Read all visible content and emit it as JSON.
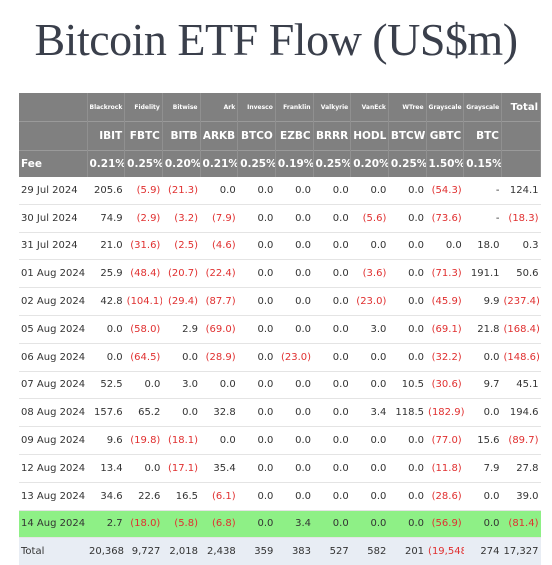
{
  "title": "Bitcoin ETF Flow (US$m)",
  "table": {
    "issuers": [
      "Blackrock",
      "Fidelity",
      "Bitwise",
      "Ark",
      "Invesco",
      "Franklin",
      "Valkyrie",
      "VanEck",
      "WTree",
      "Grayscale",
      "Grayscale"
    ],
    "total_label": "Total",
    "tickers": [
      "IBIT",
      "FBTC",
      "BITB",
      "ARKB",
      "BTCO",
      "EZBC",
      "BRRR",
      "HODL",
      "BTCW",
      "GBTC",
      "BTC"
    ],
    "fee_label": "Fee",
    "fees": [
      "0.21%",
      "0.25%",
      "0.20%",
      "0.21%",
      "0.25%",
      "0.19%",
      "0.25%",
      "0.20%",
      "0.25%",
      "1.50%",
      "0.15%"
    ],
    "rows": [
      {
        "date": "29 Jul 2024",
        "values": [
          "205.6",
          "(5.9)",
          "(21.3)",
          "0.0",
          "0.0",
          "0.0",
          "0.0",
          "0.0",
          "0.0",
          "(54.3)",
          "-"
        ],
        "total": "124.1"
      },
      {
        "date": "30 Jul 2024",
        "values": [
          "74.9",
          "(2.9)",
          "(3.2)",
          "(7.9)",
          "0.0",
          "0.0",
          "0.0",
          "(5.6)",
          "0.0",
          "(73.6)",
          "-"
        ],
        "total": "(18.3)"
      },
      {
        "date": "31 Jul 2024",
        "values": [
          "21.0",
          "(31.6)",
          "(2.5)",
          "(4.6)",
          "0.0",
          "0.0",
          "0.0",
          "0.0",
          "0.0",
          "0.0",
          "18.0"
        ],
        "total": "0.3"
      },
      {
        "date": "01 Aug 2024",
        "values": [
          "25.9",
          "(48.4)",
          "(20.7)",
          "(22.4)",
          "0.0",
          "0.0",
          "0.0",
          "(3.6)",
          "0.0",
          "(71.3)",
          "191.1"
        ],
        "total": "50.6"
      },
      {
        "date": "02 Aug 2024",
        "values": [
          "42.8",
          "(104.1)",
          "(29.4)",
          "(87.7)",
          "0.0",
          "0.0",
          "0.0",
          "(23.0)",
          "0.0",
          "(45.9)",
          "9.9"
        ],
        "total": "(237.4)"
      },
      {
        "date": "05 Aug 2024",
        "values": [
          "0.0",
          "(58.0)",
          "2.9",
          "(69.0)",
          "0.0",
          "0.0",
          "0.0",
          "3.0",
          "0.0",
          "(69.1)",
          "21.8"
        ],
        "total": "(168.4)"
      },
      {
        "date": "06 Aug 2024",
        "values": [
          "0.0",
          "(64.5)",
          "0.0",
          "(28.9)",
          "0.0",
          "(23.0)",
          "0.0",
          "0.0",
          "0.0",
          "(32.2)",
          "0.0"
        ],
        "total": "(148.6)"
      },
      {
        "date": "07 Aug 2024",
        "values": [
          "52.5",
          "0.0",
          "3.0",
          "0.0",
          "0.0",
          "0.0",
          "0.0",
          "0.0",
          "10.5",
          "(30.6)",
          "9.7"
        ],
        "total": "45.1"
      },
      {
        "date": "08 Aug 2024",
        "values": [
          "157.6",
          "65.2",
          "0.0",
          "32.8",
          "0.0",
          "0.0",
          "0.0",
          "3.4",
          "118.5",
          "(182.9)",
          "0.0"
        ],
        "total": "194.6"
      },
      {
        "date": "09 Aug 2024",
        "values": [
          "9.6",
          "(19.8)",
          "(18.1)",
          "0.0",
          "0.0",
          "0.0",
          "0.0",
          "0.0",
          "0.0",
          "(77.0)",
          "15.6"
        ],
        "total": "(89.7)"
      },
      {
        "date": "12 Aug 2024",
        "values": [
          "13.4",
          "0.0",
          "(17.1)",
          "35.4",
          "0.0",
          "0.0",
          "0.0",
          "0.0",
          "0.0",
          "(11.8)",
          "7.9"
        ],
        "total": "27.8"
      },
      {
        "date": "13 Aug 2024",
        "values": [
          "34.6",
          "22.6",
          "16.5",
          "(6.1)",
          "0.0",
          "0.0",
          "0.0",
          "0.0",
          "0.0",
          "(28.6)",
          "0.0"
        ],
        "total": "39.0"
      },
      {
        "date": "14 Aug 2024",
        "values": [
          "2.7",
          "(18.0)",
          "(5.8)",
          "(6.8)",
          "0.0",
          "3.4",
          "0.0",
          "0.0",
          "0.0",
          "(56.9)",
          "0.0"
        ],
        "total": "(81.4)",
        "highlight": true
      }
    ],
    "totals": {
      "label": "Total",
      "values": [
        "20,368",
        "9,727",
        "2,018",
        "2,438",
        "359",
        "383",
        "527",
        "582",
        "201",
        "(19,548)",
        "274"
      ],
      "total": "17,327"
    }
  },
  "colors": {
    "header_bg": "#808080",
    "negative": "#e03030",
    "highlight_row": "#8ef086",
    "total_row_bg": "#e8edf4"
  }
}
